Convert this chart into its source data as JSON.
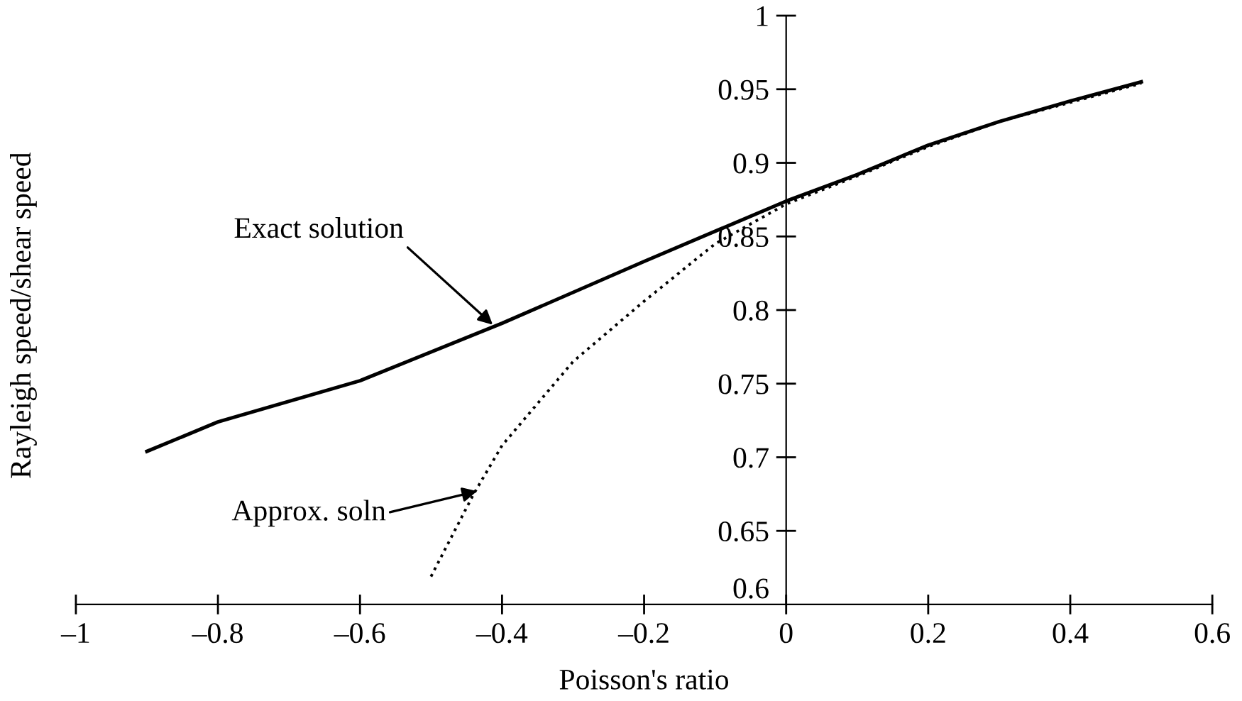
{
  "chart_data": {
    "type": "line",
    "xlabel": "Poisson's ratio",
    "ylabel": "Rayleigh speed/shear speed",
    "series": [
      {
        "color": "#000000",
        "line_style": "solid",
        "x": [
          -0.9,
          -0.8,
          -0.6,
          -0.4,
          -0.2,
          0,
          0.1,
          0.2,
          0.3,
          0.4,
          0.5
        ],
        "values": [
          0.704,
          0.724,
          0.752,
          0.791,
          0.833,
          0.874,
          0.892,
          0.912,
          0.928,
          0.942,
          0.955
        ]
      },
      {
        "color": "#000000",
        "line_style": "dotted",
        "x": [
          -0.5,
          -0.44,
          -0.4,
          -0.3,
          -0.2,
          -0.1,
          0,
          0.1,
          0.2,
          0.3,
          0.4,
          0.5
        ],
        "values": [
          0.619,
          0.675,
          0.708,
          0.765,
          0.806,
          0.845,
          0.872,
          0.891,
          0.911,
          0.928,
          0.941,
          0.954
        ]
      }
    ],
    "annotations": [
      {
        "text": "Exact solution",
        "x": -0.413,
        "y": 0.79
      },
      {
        "text": "Approx. soln",
        "x": -0.435,
        "y": 0.677
      }
    ],
    "xlim": [
      -1,
      0.6
    ],
    "ylim": [
      0.6,
      1
    ],
    "xticks": [
      {
        "value": -1,
        "label": "–1"
      },
      {
        "value": -0.8,
        "label": "–0.8"
      },
      {
        "value": -0.6,
        "label": "–0.6"
      },
      {
        "value": -0.4,
        "label": "–0.4"
      },
      {
        "value": -0.2,
        "label": "–0.2"
      },
      0,
      0.2,
      0.4,
      0.6
    ],
    "yticks": [
      0.6,
      0.65,
      0.7,
      0.75,
      0.8,
      0.85,
      0.9,
      0.95,
      1
    ],
    "marker": "none"
  }
}
